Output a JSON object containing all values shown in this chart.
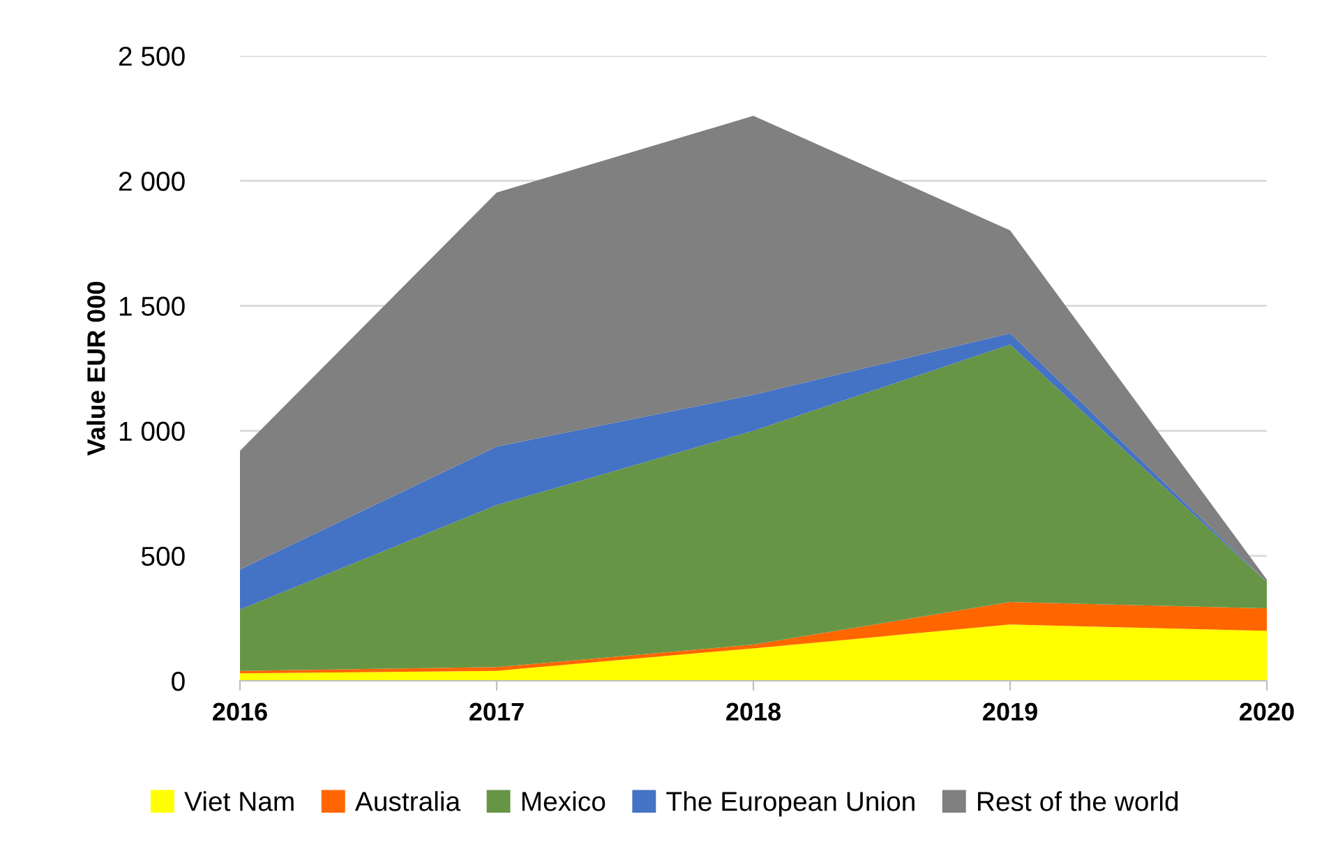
{
  "chart_data": {
    "type": "area",
    "stacked": true,
    "ylabel": "Value EUR 000",
    "categories": [
      "2016",
      "2017",
      "2018",
      "2019",
      "2020"
    ],
    "series": [
      {
        "name": "Viet Nam",
        "color": "#ffff00",
        "values": [
          30,
          40,
          130,
          225,
          200
        ]
      },
      {
        "name": "Australia",
        "color": "#ff6600",
        "values": [
          10,
          15,
          15,
          90,
          90
        ]
      },
      {
        "name": "Mexico",
        "color": "#679546",
        "values": [
          245,
          648,
          855,
          1030,
          105
        ]
      },
      {
        "name": "The European Union",
        "color": "#4472c4",
        "values": [
          160,
          234,
          144,
          45,
          0
        ]
      },
      {
        "name": "Rest of the world",
        "color": "#808080",
        "values": [
          475,
          1016,
          1116,
          412,
          10
        ]
      }
    ],
    "ylim": [
      0,
      2500
    ],
    "yticks": [
      {
        "value": 0,
        "label": "0"
      },
      {
        "value": 500,
        "label": "500"
      },
      {
        "value": 1000,
        "label": "1 000"
      },
      {
        "value": 1500,
        "label": "1 500"
      },
      {
        "value": 2000,
        "label": "2 000"
      },
      {
        "value": 2500,
        "label": "2 500"
      }
    ],
    "grid": "y",
    "legend": "bottom"
  }
}
